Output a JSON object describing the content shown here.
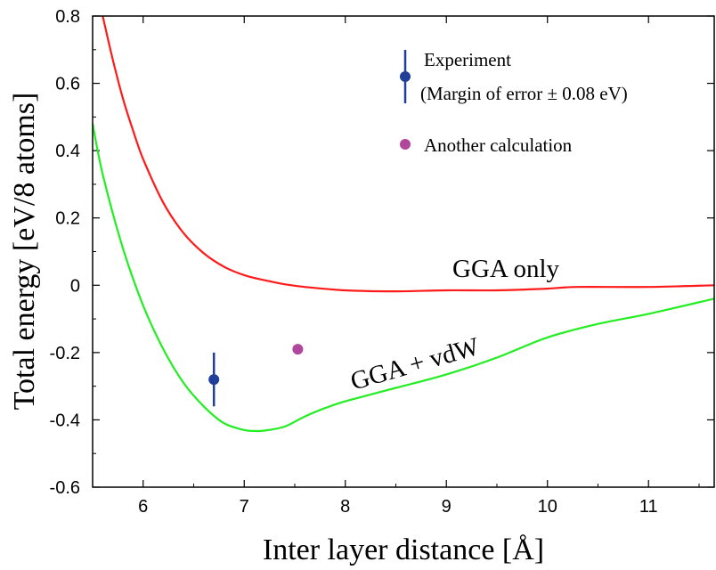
{
  "chart_data": {
    "type": "line",
    "title": "",
    "xlabel": "Inter layer distance [Å]",
    "ylabel": "Total energy [eV/8 atoms]",
    "xlim": [
      5.5,
      11.65
    ],
    "ylim": [
      -0.6,
      0.8
    ],
    "xticks": [
      6,
      7,
      8,
      9,
      10,
      11
    ],
    "xtick_labels": [
      "6",
      "7",
      "8",
      "9",
      "10",
      "11"
    ],
    "yticks": [
      0.8,
      0.6,
      0.4,
      0.2,
      0,
      -0.2,
      -0.4,
      -0.6
    ],
    "ytick_labels": [
      "0.8",
      "0.6",
      "0.4",
      "0.2",
      "0",
      "-0.2",
      "-0.4",
      "-0.6"
    ],
    "grid": false,
    "series": [
      {
        "name": "GGA only",
        "color": "#ff1a1a",
        "x": [
          5.6,
          5.7,
          5.8,
          5.9,
          6.0,
          6.2,
          6.4,
          6.6,
          6.8,
          7.0,
          7.2,
          7.4,
          7.6,
          8.0,
          8.5,
          9.0,
          9.5,
          10.0,
          10.3,
          11.0,
          11.65
        ],
        "values": [
          0.8,
          0.67,
          0.555,
          0.46,
          0.375,
          0.245,
          0.155,
          0.095,
          0.055,
          0.03,
          0.015,
          0.003,
          -0.005,
          -0.015,
          -0.018,
          -0.015,
          -0.015,
          -0.01,
          -0.005,
          -0.005,
          0.0
        ]
      },
      {
        "name": "GGA + vdW",
        "color": "#22ee22",
        "x": [
          5.5,
          5.6,
          5.8,
          6.0,
          6.2,
          6.4,
          6.6,
          6.8,
          7.0,
          7.1,
          7.2,
          7.4,
          7.6,
          7.8,
          8.0,
          8.5,
          9.0,
          9.5,
          10.0,
          10.5,
          11.0,
          11.65
        ],
        "values": [
          0.48,
          0.33,
          0.11,
          -0.06,
          -0.19,
          -0.29,
          -0.36,
          -0.41,
          -0.43,
          -0.433,
          -0.432,
          -0.42,
          -0.39,
          -0.365,
          -0.345,
          -0.305,
          -0.265,
          -0.215,
          -0.155,
          -0.115,
          -0.085,
          -0.04
        ]
      }
    ],
    "curve_labels": [
      "GGA only",
      "GGA + vdW"
    ],
    "points": [
      {
        "name": "Experiment",
        "x": 6.7,
        "y": -0.28,
        "error": 0.08,
        "color": "#1f3f99"
      },
      {
        "name": "Another calculation",
        "x": 7.53,
        "y": -0.19,
        "color": "#b0479c"
      }
    ],
    "legend": {
      "position": "top-right",
      "entries": [
        "Experiment",
        "(Margin of error ± 0.08 eV)",
        "Another calculation"
      ]
    }
  }
}
